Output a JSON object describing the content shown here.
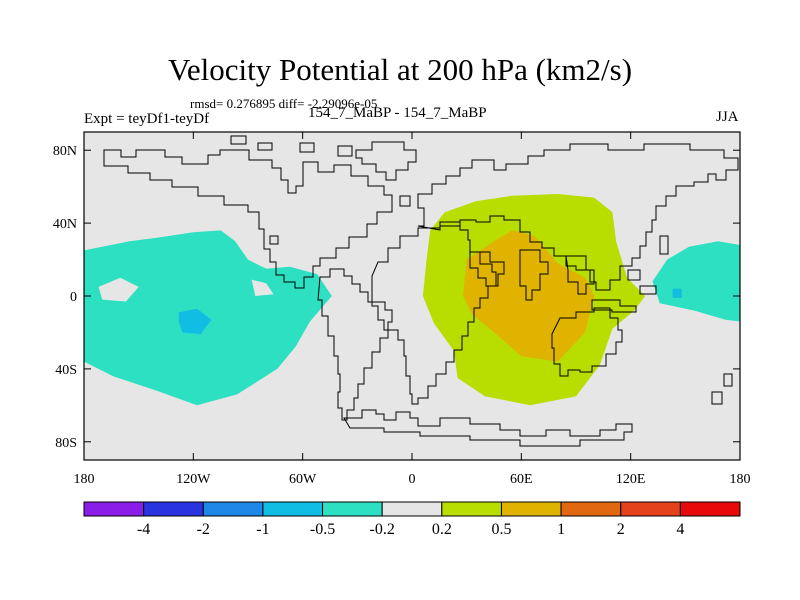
{
  "figure": {
    "title": "Velocity Potential at 200 hPa (km2/s)",
    "stats": "rmsd= 0.276895 diff= -2.29096e-05",
    "expt": "Expt = teyDf1-teyDf",
    "cases": "154_7_MaBP - 154_7_MaBP",
    "season": "JJA"
  },
  "chart_data": {
    "type": "heatmap",
    "title": "Velocity Potential at 200 hPa (km2/s)",
    "subtitle": "154_7_MaBP - 154_7_MaBP",
    "xlabel": "",
    "ylabel": "",
    "xlim": [
      -180,
      180
    ],
    "ylim": [
      -90,
      90
    ],
    "x_ticks": [
      {
        "value": -180,
        "label": "180"
      },
      {
        "value": -120,
        "label": "120W"
      },
      {
        "value": -60,
        "label": "60W"
      },
      {
        "value": 0,
        "label": "0"
      },
      {
        "value": 60,
        "label": "60E"
      },
      {
        "value": 120,
        "label": "120E"
      },
      {
        "value": 180,
        "label": "180"
      }
    ],
    "y_ticks": [
      {
        "value": 80,
        "label": "80N"
      },
      {
        "value": 40,
        "label": "40N"
      },
      {
        "value": 0,
        "label": "0"
      },
      {
        "value": -40,
        "label": "40S"
      },
      {
        "value": -80,
        "label": "80S"
      }
    ],
    "colorbar": {
      "labels": [
        "-4",
        "-2",
        "-1",
        "-0.5",
        "-0.2",
        "0.2",
        "0.5",
        "1",
        "2",
        "4"
      ],
      "colors": [
        "#8a1ee8",
        "#2a33e0",
        "#1e86e6",
        "#11bde2",
        "#2ee0c2",
        "#e6e6e6",
        "#b8dd00",
        "#dfb300",
        "#e06810",
        "#e4411d",
        "#e80a0a"
      ]
    },
    "regions": [
      {
        "name": "negative-anomaly-pacific-west",
        "range": "-0.5 to -0.2",
        "color": "#2ee0c2",
        "points": [
          [
            -180,
            25
          ],
          [
            -170,
            27
          ],
          [
            -155,
            30
          ],
          [
            -140,
            32
          ],
          [
            -120,
            35
          ],
          [
            -105,
            36
          ],
          [
            -97,
            30
          ],
          [
            -90,
            20
          ],
          [
            -80,
            15
          ],
          [
            -67,
            16
          ],
          [
            -52,
            12
          ],
          [
            -44,
            0
          ],
          [
            -56,
            -14
          ],
          [
            -64,
            -28
          ],
          [
            -74,
            -40
          ],
          [
            -96,
            -54
          ],
          [
            -118,
            -60
          ],
          [
            -140,
            -52
          ],
          [
            -164,
            -44
          ],
          [
            -180,
            -36
          ]
        ]
      },
      {
        "name": "negative-anomaly-pacific-core",
        "range": "-1 to -0.5",
        "color": "#11bde2",
        "points": [
          [
            -128,
            -9
          ],
          [
            -118,
            -7
          ],
          [
            -110,
            -13
          ],
          [
            -116,
            -21
          ],
          [
            -126,
            -20
          ],
          [
            -128,
            -14
          ]
        ]
      },
      {
        "name": "background-hole-west",
        "range": "-0.2 to 0.2",
        "color": "#e6e6e6",
        "points": [
          [
            -172,
            5
          ],
          [
            -160,
            10
          ],
          [
            -150,
            5
          ],
          [
            -157,
            -3
          ],
          [
            -170,
            -2
          ]
        ]
      },
      {
        "name": "background-hole-tropics",
        "range": "-0.2 to 0.2",
        "color": "#e6e6e6",
        "points": [
          [
            -88,
            9
          ],
          [
            -80,
            7
          ],
          [
            -76,
            1
          ],
          [
            -86,
            0
          ]
        ]
      },
      {
        "name": "negative-anomaly-date-line-west",
        "range": "-0.5 to -0.2",
        "color": "#2ee0c2",
        "points": [
          [
            -180,
            -12
          ],
          [
            -173,
            -18
          ],
          [
            -180,
            -24
          ]
        ]
      },
      {
        "name": "negative-anomaly-pacific-east",
        "range": "-0.5 to -0.2",
        "color": "#2ee0c2",
        "points": [
          [
            180,
            28
          ],
          [
            168,
            30
          ],
          [
            152,
            27
          ],
          [
            140,
            20
          ],
          [
            132,
            8
          ],
          [
            136,
            -4
          ],
          [
            155,
            -8
          ],
          [
            172,
            -13
          ],
          [
            180,
            -14
          ]
        ]
      },
      {
        "name": "negative-anomaly-east-core",
        "range": "-1 to -0.5",
        "color": "#11bde2",
        "points": [
          [
            143,
            4
          ],
          [
            148,
            4
          ],
          [
            148,
            -1
          ],
          [
            143,
            -1
          ]
        ]
      },
      {
        "name": "positive-anomaly-outer",
        "range": "0.2 to 0.5",
        "color": "#b8dd00",
        "points": [
          [
            10,
            36
          ],
          [
            18,
            46
          ],
          [
            35,
            52
          ],
          [
            55,
            55
          ],
          [
            80,
            56
          ],
          [
            100,
            54
          ],
          [
            110,
            46
          ],
          [
            112,
            30
          ],
          [
            118,
            10
          ],
          [
            128,
            0
          ],
          [
            122,
            -8
          ],
          [
            110,
            -18
          ],
          [
            103,
            -38
          ],
          [
            90,
            -55
          ],
          [
            65,
            -60
          ],
          [
            40,
            -55
          ],
          [
            25,
            -45
          ],
          [
            23,
            -30
          ],
          [
            12,
            -15
          ],
          [
            6,
            0
          ],
          [
            8,
            20
          ]
        ]
      },
      {
        "name": "positive-anomaly-core",
        "range": "0.5 to 1",
        "color": "#dfb300",
        "points": [
          [
            30,
            20
          ],
          [
            45,
            30
          ],
          [
            55,
            36
          ],
          [
            67,
            33
          ],
          [
            80,
            18
          ],
          [
            95,
            10
          ],
          [
            100,
            0
          ],
          [
            95,
            -20
          ],
          [
            80,
            -36
          ],
          [
            60,
            -33
          ],
          [
            45,
            -20
          ],
          [
            33,
            -10
          ],
          [
            28,
            0
          ]
        ]
      }
    ]
  }
}
